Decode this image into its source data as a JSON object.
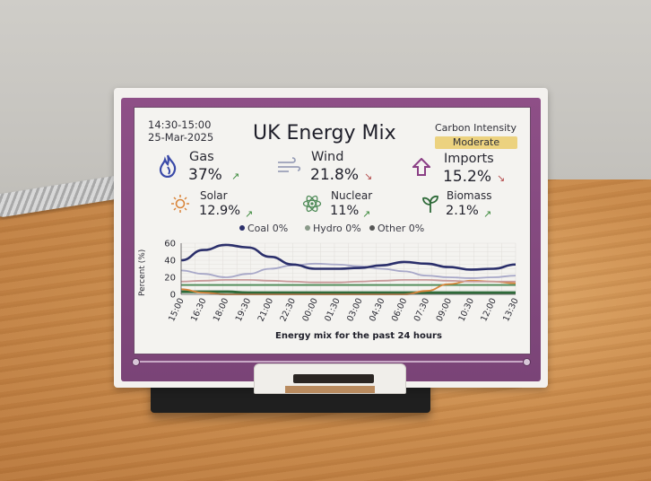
{
  "display": {
    "time_range": "14:30-15:00",
    "date": "25-Mar-2025",
    "title": "UK Energy Mix",
    "carbon_intensity_label": "Carbon Intensity",
    "carbon_intensity_value": "Moderate",
    "colors": {
      "bezel": "#8e4f87",
      "badge": "#ecd27f",
      "trend_up": "#3c8a3c",
      "trend_down": "#b34a4a"
    }
  },
  "sources_primary": [
    {
      "name": "Gas",
      "value": "37%",
      "trend": "up",
      "icon": "flame-icon"
    },
    {
      "name": "Wind",
      "value": "21.8%",
      "trend": "down",
      "icon": "wind-icon"
    },
    {
      "name": "Imports",
      "value": "15.2%",
      "trend": "down",
      "icon": "import-arrow-icon"
    }
  ],
  "sources_secondary": [
    {
      "name": "Solar",
      "value": "12.9%",
      "trend": "up",
      "icon": "sun-icon"
    },
    {
      "name": "Nuclear",
      "value": "11%",
      "trend": "up",
      "icon": "atom-icon"
    },
    {
      "name": "Biomass",
      "value": "2.1%",
      "trend": "up",
      "icon": "sprout-icon"
    }
  ],
  "legend": [
    {
      "label": "Coal 0%",
      "color": "#2b2f6b"
    },
    {
      "label": "Hydro 0%",
      "color": "#8a9a8a"
    },
    {
      "label": "Other 0%",
      "color": "#555555"
    }
  ],
  "chart_data": {
    "type": "line",
    "ylabel": "Percent (%)",
    "xlabel": "Energy mix for the past 24 hours",
    "ylim": [
      0,
      60
    ],
    "yticks": [
      0,
      20,
      40,
      60
    ],
    "grid": true,
    "x": [
      "15:00",
      "16:30",
      "18:00",
      "19:30",
      "21:00",
      "22:30",
      "00:00",
      "01:30",
      "03:00",
      "04:30",
      "06:00",
      "07:30",
      "09:00",
      "10:30",
      "12:00",
      "13:30"
    ],
    "series": [
      {
        "name": "Gas",
        "color": "#2b2f6b",
        "values": [
          40,
          52,
          58,
          55,
          44,
          35,
          30,
          30,
          31,
          34,
          38,
          36,
          32,
          29,
          30,
          35
        ]
      },
      {
        "name": "Wind",
        "color": "#a8a8c8",
        "values": [
          28,
          24,
          20,
          24,
          30,
          34,
          36,
          35,
          33,
          30,
          27,
          22,
          20,
          19,
          20,
          22
        ]
      },
      {
        "name": "Imports",
        "color": "#c99a9a",
        "values": [
          15,
          16,
          17,
          17,
          16,
          15,
          14,
          14,
          15,
          16,
          17,
          17,
          16,
          15,
          15,
          15
        ]
      },
      {
        "name": "Solar",
        "color": "#d9853a",
        "values": [
          6,
          2,
          0,
          0,
          0,
          0,
          0,
          0,
          0,
          0,
          0,
          4,
          12,
          16,
          15,
          13
        ]
      },
      {
        "name": "Nuclear",
        "color": "#4e8a57",
        "values": [
          11,
          11,
          11,
          11,
          11,
          11,
          11,
          11,
          11,
          11,
          11,
          11,
          11,
          11,
          11,
          11
        ]
      },
      {
        "name": "Biomass",
        "color": "#2f6b3a",
        "values": [
          3,
          3,
          3,
          2,
          2,
          2,
          2,
          2,
          2,
          2,
          2,
          2,
          2,
          2,
          2,
          2
        ]
      }
    ]
  }
}
